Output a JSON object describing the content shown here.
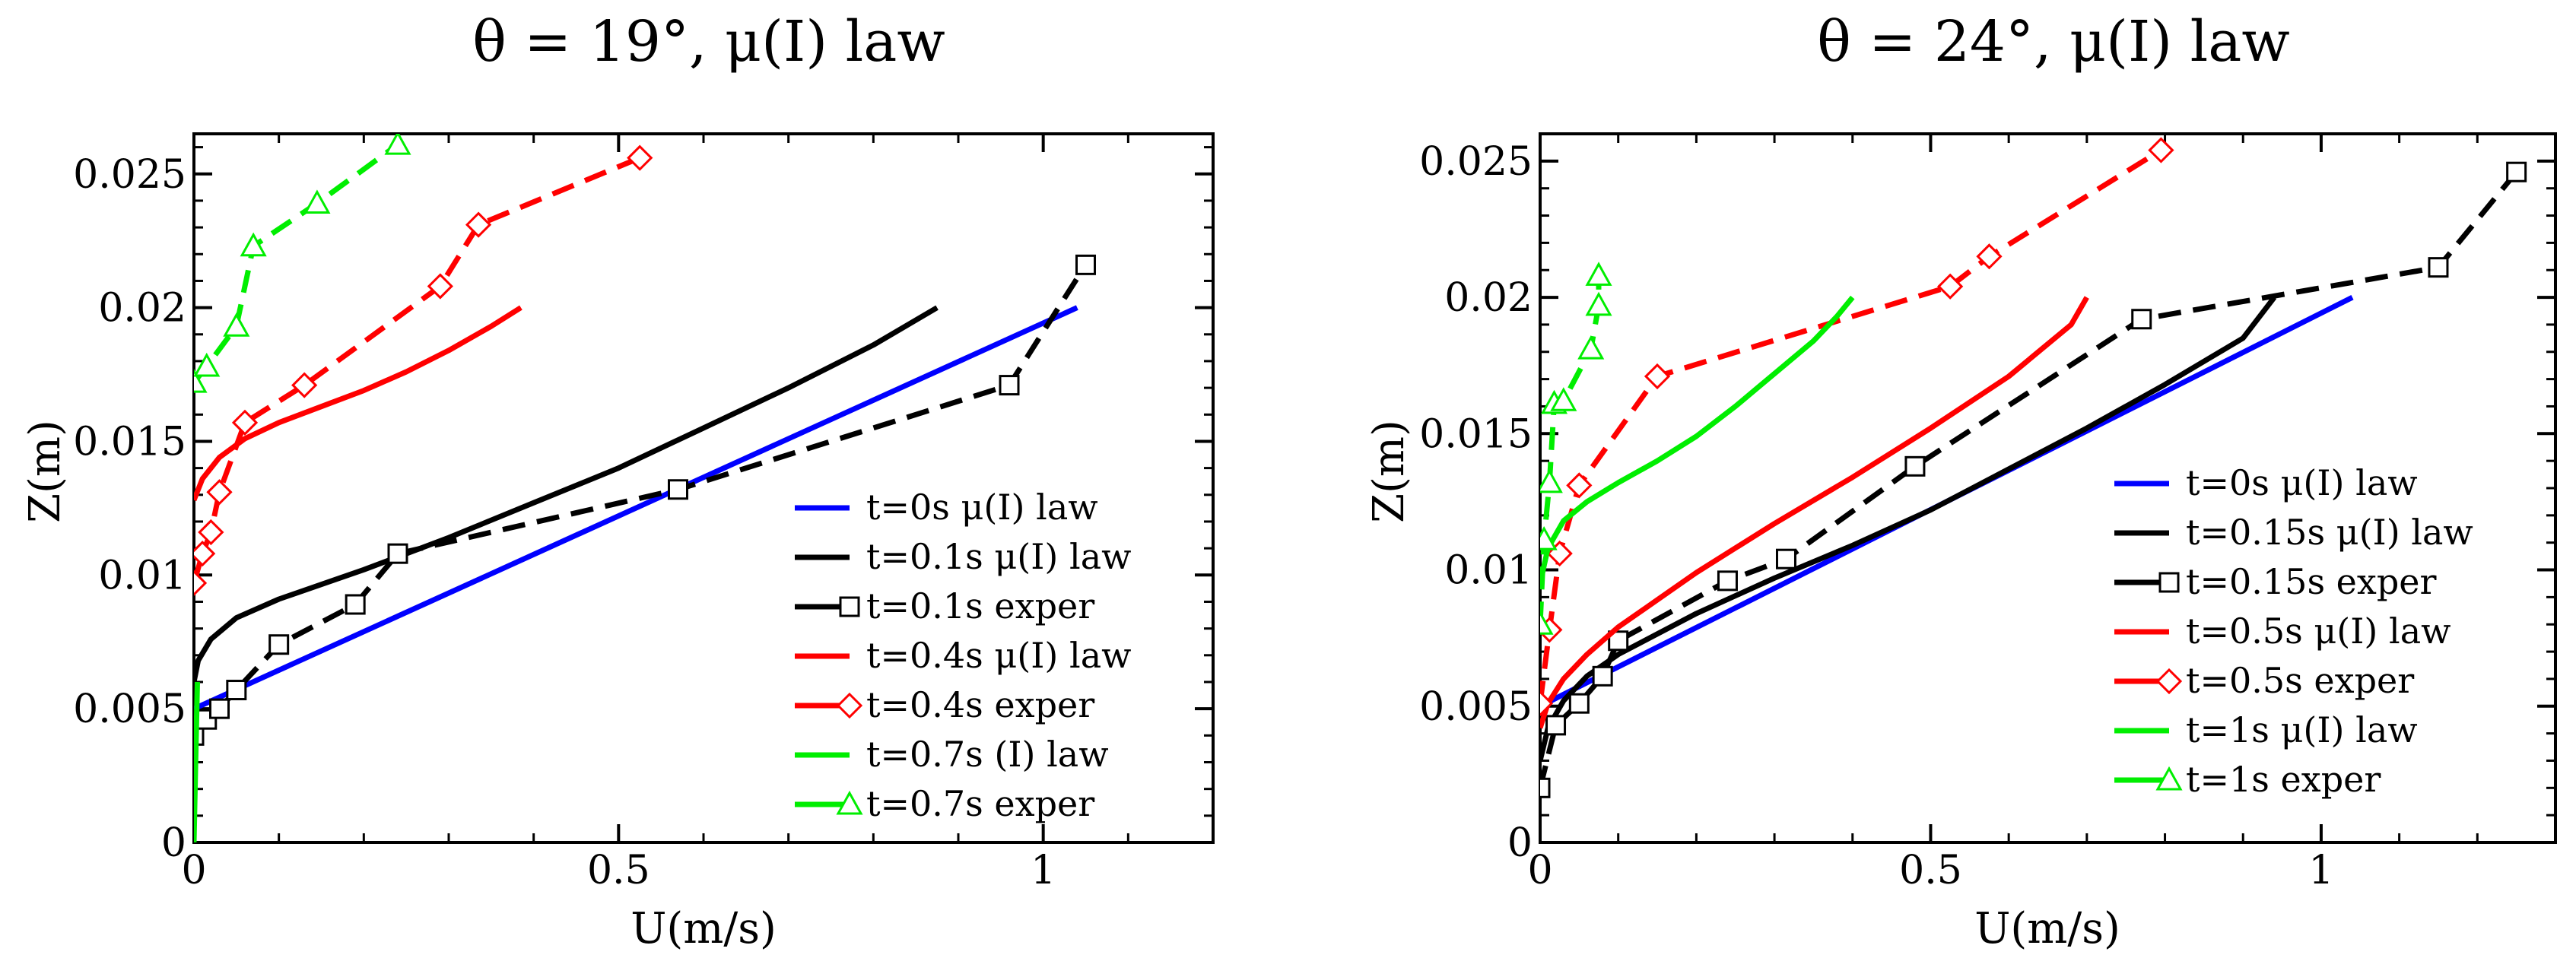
{
  "chart_data": [
    {
      "type": "line",
      "title": "θ = 19°, μ(I) law",
      "xlabel": "U(m/s)",
      "ylabel": "Z(m)",
      "xlim": [
        0,
        1.2
      ],
      "ylim": [
        0,
        0.0265
      ],
      "xticks": [
        {
          "value": 0,
          "label": "0"
        },
        {
          "value": 0.5,
          "label": "0.5"
        },
        {
          "value": 1,
          "label": "1"
        }
      ],
      "yticks": [
        {
          "value": 0,
          "label": "0"
        },
        {
          "value": 0.005,
          "label": "0.005"
        },
        {
          "value": 0.01,
          "label": "0.01"
        },
        {
          "value": 0.015,
          "label": "0.015"
        },
        {
          "value": 0.02,
          "label": "0.02"
        },
        {
          "value": 0.025,
          "label": "0.025"
        }
      ],
      "legend_position": "bottom-right",
      "series": [
        {
          "name": "t=0s μ(I) law",
          "color": "#0000ff",
          "style": "solid",
          "marker": "none",
          "x": [
            0,
            1.04
          ],
          "y": [
            0.005,
            0.02
          ]
        },
        {
          "name": "t=0.1s μ(I) law",
          "color": "#000000",
          "style": "solid",
          "marker": "none",
          "x": [
            0,
            0.005,
            0.02,
            0.05,
            0.1,
            0.2,
            0.3,
            0.4,
            0.5,
            0.6,
            0.7,
            0.8,
            0.875
          ],
          "y": [
            0.006,
            0.0068,
            0.0076,
            0.0084,
            0.0091,
            0.0102,
            0.0114,
            0.0127,
            0.014,
            0.0155,
            0.017,
            0.0186,
            0.02
          ]
        },
        {
          "name": "t=0.1s exper",
          "color": "#000000",
          "style": "dashed",
          "marker": "square",
          "x": [
            0,
            0.015,
            0.03,
            0.05,
            0.1,
            0.19,
            0.24,
            0.57,
            0.96,
            1.05
          ],
          "y": [
            0.004,
            0.0046,
            0.005,
            0.0057,
            0.0074,
            0.0089,
            0.0108,
            0.0132,
            0.0171,
            0.0216
          ]
        },
        {
          "name": "t=0.4s μ(I) law",
          "color": "#ff0000",
          "style": "solid",
          "marker": "none",
          "x": [
            0,
            0.01,
            0.03,
            0.06,
            0.1,
            0.15,
            0.2,
            0.25,
            0.3,
            0.35,
            0.385
          ],
          "y": [
            0.0128,
            0.0136,
            0.0144,
            0.0151,
            0.0157,
            0.0163,
            0.0169,
            0.0176,
            0.0184,
            0.0193,
            0.02
          ]
        },
        {
          "name": "t=0.4s exper",
          "color": "#ff0000",
          "style": "dashed",
          "marker": "diamond",
          "x": [
            0,
            0.01,
            0.02,
            0.03,
            0.06,
            0.13,
            0.29,
            0.335,
            0.525
          ],
          "y": [
            0.0097,
            0.0108,
            0.0116,
            0.0131,
            0.0157,
            0.0171,
            0.0208,
            0.0231,
            0.0256
          ]
        },
        {
          "name": "t=0.7s (I) law",
          "color": "#00ee00",
          "style": "solid",
          "marker": "none",
          "x": [
            0,
            0.002,
            0.004
          ],
          "y": [
            0,
            0.003,
            0.006
          ]
        },
        {
          "name": "t=0.7s exper",
          "color": "#00ee00",
          "style": "dashed",
          "marker": "triangle",
          "x": [
            0,
            0.015,
            0.05,
            0.07,
            0.145,
            0.24
          ],
          "y": [
            0.0172,
            0.0178,
            0.0193,
            0.0223,
            0.0239,
            0.0261
          ]
        }
      ]
    },
    {
      "type": "line",
      "title": "θ = 24°, μ(I) law",
      "xlabel": "U(m/s)",
      "ylabel": "Z(m)",
      "xlim": [
        0,
        1.3
      ],
      "ylim": [
        0,
        0.026
      ],
      "xticks": [
        {
          "value": 0,
          "label": "0"
        },
        {
          "value": 0.5,
          "label": "0.5"
        },
        {
          "value": 1,
          "label": "1"
        }
      ],
      "yticks": [
        {
          "value": 0,
          "label": "0"
        },
        {
          "value": 0.005,
          "label": "0.005"
        },
        {
          "value": 0.01,
          "label": "0.01"
        },
        {
          "value": 0.015,
          "label": "0.015"
        },
        {
          "value": 0.02,
          "label": "0.02"
        },
        {
          "value": 0.025,
          "label": "0.025"
        }
      ],
      "legend_position": "bottom-right",
      "series": [
        {
          "name": "t=0s μ(I) law",
          "color": "#0000ff",
          "style": "solid",
          "marker": "none",
          "x": [
            0,
            1.04
          ],
          "y": [
            0.005,
            0.02
          ]
        },
        {
          "name": "t=0.15s μ(I) law",
          "color": "#000000",
          "style": "solid",
          "marker": "none",
          "x": [
            0,
            0.01,
            0.03,
            0.06,
            0.1,
            0.2,
            0.3,
            0.4,
            0.5,
            0.6,
            0.7,
            0.8,
            0.9,
            0.94
          ],
          "y": [
            0.003,
            0.0042,
            0.0052,
            0.0061,
            0.0069,
            0.0084,
            0.0097,
            0.0109,
            0.0122,
            0.0137,
            0.0152,
            0.0168,
            0.0185,
            0.02
          ]
        },
        {
          "name": "t=0.15s exper",
          "color": "#000000",
          "style": "dashed",
          "marker": "square",
          "x": [
            0,
            0.02,
            0.05,
            0.08,
            0.1,
            0.24,
            0.315,
            0.48,
            0.77,
            1.15,
            1.25
          ],
          "y": [
            0.002,
            0.0043,
            0.0051,
            0.0061,
            0.0074,
            0.0096,
            0.0104,
            0.0138,
            0.0192,
            0.0211,
            0.0246
          ]
        },
        {
          "name": "t=0.5s μ(I) law",
          "color": "#ff0000",
          "style": "solid",
          "marker": "none",
          "x": [
            0,
            0.01,
            0.03,
            0.06,
            0.1,
            0.15,
            0.2,
            0.3,
            0.4,
            0.5,
            0.6,
            0.68,
            0.7
          ],
          "y": [
            0.0042,
            0.0051,
            0.006,
            0.0069,
            0.0079,
            0.0089,
            0.0099,
            0.0117,
            0.0134,
            0.0152,
            0.0171,
            0.019,
            0.02
          ]
        },
        {
          "name": "t=0.5s exper",
          "color": "#ff0000",
          "style": "dashed",
          "marker": "diamond",
          "x": [
            0,
            0.012,
            0.025,
            0.05,
            0.15,
            0.525,
            0.575,
            0.795
          ],
          "y": [
            0.0051,
            0.0078,
            0.0106,
            0.0131,
            0.0171,
            0.0204,
            0.0215,
            0.0254
          ]
        },
        {
          "name": "t=1s μ(I) law",
          "color": "#00ee00",
          "style": "solid",
          "marker": "none",
          "x": [
            0,
            0.01,
            0.03,
            0.06,
            0.1,
            0.15,
            0.2,
            0.25,
            0.3,
            0.35,
            0.38,
            0.4
          ],
          "y": [
            0.0095,
            0.0108,
            0.0118,
            0.0125,
            0.0132,
            0.014,
            0.0149,
            0.016,
            0.0172,
            0.0184,
            0.0193,
            0.02
          ]
        },
        {
          "name": "t=1s exper",
          "color": "#00ee00",
          "style": "dashed",
          "marker": "triangle",
          "x": [
            0,
            0.005,
            0.012,
            0.018,
            0.03,
            0.065,
            0.075,
            0.075
          ],
          "y": [
            0.008,
            0.0111,
            0.0132,
            0.0161,
            0.0162,
            0.0181,
            0.0197,
            0.0208
          ]
        }
      ]
    }
  ]
}
